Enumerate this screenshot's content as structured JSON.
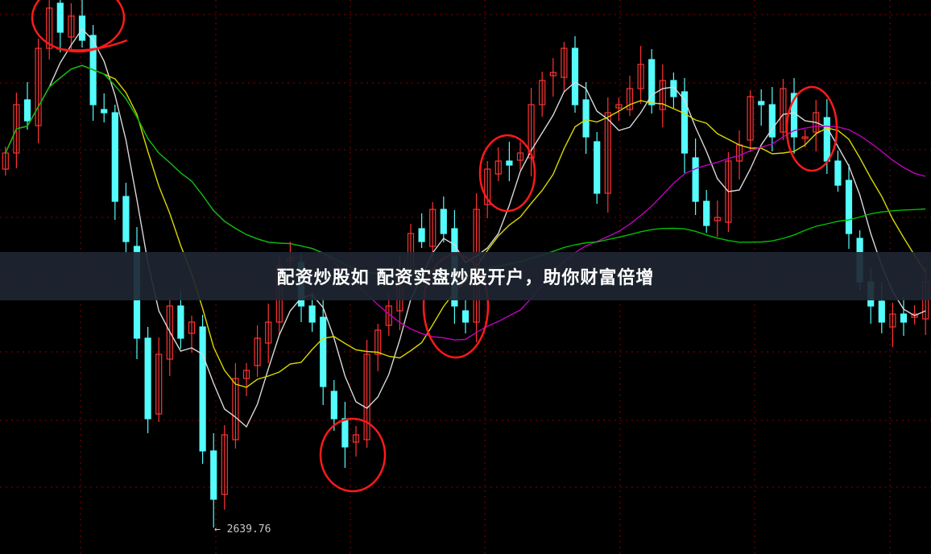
{
  "banner": {
    "text": "配资炒股如 配资实盘炒股开户，助你财富倍增"
  },
  "chart_data": {
    "type": "candlestick",
    "title": "",
    "annotation": {
      "low_label": "2639.76",
      "low_value": 2639.76,
      "low_index": 19
    },
    "colors": {
      "up": "#ff3232",
      "down": "#54fcfc",
      "ma5": "#d8d8d8",
      "ma10": "#d8d800",
      "ma30": "#c000c0",
      "ma60": "#00c000",
      "grid": "#8a0000",
      "circle": "#ff1a1a"
    },
    "moving_averages": [
      5,
      10,
      30,
      60
    ],
    "grid": true,
    "close": [
      3105,
      3165,
      3145,
      3235,
      3285,
      3255,
      3275,
      3245,
      3165,
      3155,
      3045,
      2995,
      2875,
      2775,
      2855,
      2915,
      2875,
      2895,
      2735,
      2675,
      2755,
      2825,
      2835,
      2875,
      2895,
      2965,
      2975,
      2915,
      2895,
      2815,
      2775,
      2740,
      2755,
      2855,
      2885,
      2915,
      2955,
      3005,
      2995,
      3035,
      3005,
      2915,
      2895,
      3035,
      3085,
      3095,
      3090,
      3105,
      3165,
      3195,
      3205,
      3235,
      3165,
      3125,
      3055,
      3155,
      3165,
      3185,
      3215,
      3165,
      3195,
      3175,
      3105,
      3045,
      3015,
      3025,
      3095,
      3115,
      3175,
      3165,
      3125,
      3185,
      3125,
      3125,
      3155,
      3095,
      3065,
      3005,
      2945,
      2915,
      2895,
      2905,
      2895,
      2905,
      2945
    ]
  }
}
